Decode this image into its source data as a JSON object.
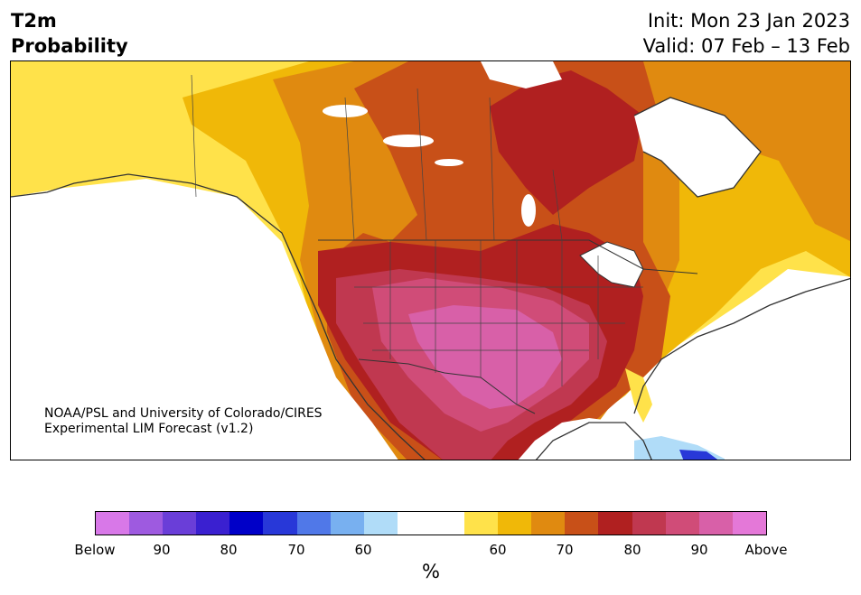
{
  "title": {
    "left_line1": "T2m",
    "left_line2": "Probability",
    "init": "Init: Mon 23 Jan 2023",
    "valid": "Valid: 07 Feb – 13 Feb"
  },
  "credit": {
    "line1": "NOAA/PSL and University of Colorado/CIRES",
    "line2": "Experimental LIM Forecast (v1.2)"
  },
  "colorbar": {
    "unit": "%",
    "colors": [
      "#d878e8",
      "#9e5ae0",
      "#6a3ed8",
      "#3a20d0",
      "#0000c8",
      "#2838d8",
      "#5078e8",
      "#78b0f0",
      "#b0dcf8",
      "#ffffff",
      "#ffffff",
      "#ffe24a",
      "#f0b808",
      "#e08a10",
      "#c85018",
      "#b02020",
      "#c03850",
      "#d04c78",
      "#d860a8",
      "#e478d8"
    ],
    "ticks": [
      "Below",
      "90",
      "80",
      "70",
      "60",
      "60",
      "70",
      "80",
      "90",
      "Above"
    ]
  }
}
